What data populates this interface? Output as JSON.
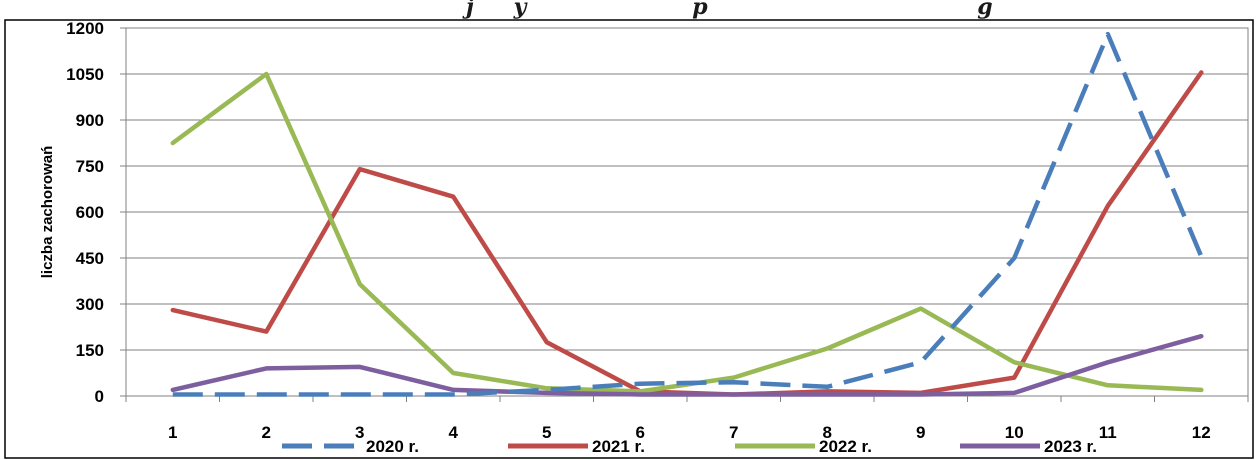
{
  "chart_data": {
    "type": "line",
    "title": "… j … … … y … … … … p … … … … g …",
    "title_visible_fragments": [
      "j",
      "y",
      "p",
      "g"
    ],
    "ylabel": "liczba zachorowań",
    "xlabel": "",
    "categories": [
      "1",
      "2",
      "3",
      "4",
      "5",
      "6",
      "7",
      "8",
      "9",
      "10",
      "11",
      "12"
    ],
    "ylim": [
      0,
      1200
    ],
    "yticks": [
      "0",
      "150",
      "300",
      "450",
      "600",
      "750",
      "900",
      "1050",
      "1200"
    ],
    "grid": "horizontal",
    "legend_position": "bottom",
    "series": [
      {
        "name": "2020 r.",
        "color": "#4a7ebb",
        "dash": "dashed",
        "values": [
          5,
          5,
          5,
          5,
          20,
          40,
          45,
          30,
          110,
          450,
          1180,
          455
        ]
      },
      {
        "name": "2021 r.",
        "color": "#be4b48",
        "dash": "solid",
        "values": [
          280,
          210,
          740,
          650,
          175,
          15,
          5,
          15,
          10,
          60,
          620,
          1055
        ]
      },
      {
        "name": "2022 r.",
        "color": "#98b954",
        "dash": "solid",
        "values": [
          825,
          1050,
          365,
          75,
          25,
          15,
          60,
          155,
          285,
          110,
          35,
          20
        ]
      },
      {
        "name": "2023 r.",
        "color": "#7d5fa0",
        "dash": "solid",
        "values": [
          20,
          90,
          95,
          20,
          10,
          5,
          5,
          5,
          5,
          10,
          110,
          195
        ]
      }
    ]
  }
}
